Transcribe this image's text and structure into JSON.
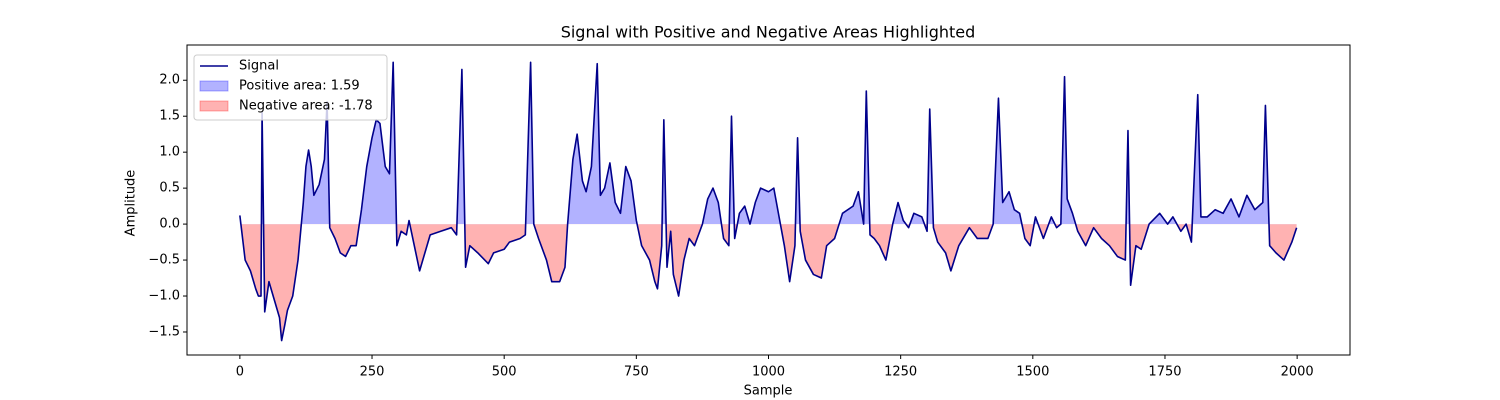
{
  "chart_data": {
    "type": "line",
    "title": "Signal with Positive and Negative Areas Highlighted",
    "x_label": "Sample",
    "y_label": "Amplitude",
    "xlim": [
      -100,
      2100
    ],
    "ylim": [
      -1.82,
      2.49
    ],
    "xticks": [
      0,
      250,
      500,
      750,
      1000,
      1250,
      1500,
      1750,
      2000
    ],
    "yticks": [
      {
        "value": 2,
        "label": "2.0"
      },
      1.5,
      {
        "value": 1,
        "label": "1.0"
      },
      0.5,
      {
        "value": 0,
        "label": "0.0"
      },
      {
        "value": -0.5,
        "label": "−0.5"
      },
      {
        "value": -1,
        "label": "−1.0"
      },
      {
        "value": -1.5,
        "label": "−1.5"
      }
    ],
    "legend_position": "upper left",
    "x": [
      0,
      10,
      20,
      30,
      35,
      40,
      42,
      47,
      55,
      65,
      75,
      79,
      85,
      90,
      100,
      110,
      120,
      125,
      130,
      135,
      140,
      150,
      160,
      165,
      170,
      180,
      190,
      200,
      210,
      220,
      230,
      240,
      250,
      258,
      265,
      275,
      283,
      290,
      297,
      305,
      315,
      320,
      330,
      340,
      350,
      360,
      380,
      400,
      410,
      420,
      427,
      435,
      450,
      470,
      480,
      500,
      510,
      530,
      540,
      550,
      556,
      565,
      580,
      590,
      605,
      615,
      620,
      630,
      638,
      648,
      655,
      665,
      676,
      682,
      690,
      700,
      710,
      720,
      730,
      740,
      750,
      760,
      775,
      785,
      790,
      798,
      802,
      808,
      815,
      820,
      830,
      840,
      850,
      860,
      875,
      885,
      895,
      905,
      915,
      925,
      930,
      936,
      945,
      955,
      965,
      975,
      985,
      1000,
      1010,
      1020,
      1030,
      1040,
      1050,
      1055,
      1060,
      1070,
      1085,
      1100,
      1110,
      1125,
      1140,
      1160,
      1170,
      1180,
      1185,
      1192,
      1200,
      1210,
      1222,
      1235,
      1245,
      1255,
      1265,
      1275,
      1290,
      1300,
      1305,
      1312,
      1320,
      1335,
      1345,
      1360,
      1380,
      1395,
      1415,
      1425,
      1435,
      1443,
      1455,
      1465,
      1475,
      1485,
      1495,
      1505,
      1520,
      1535,
      1545,
      1553,
      1560,
      1565,
      1575,
      1585,
      1600,
      1615,
      1630,
      1645,
      1660,
      1675,
      1680,
      1685,
      1695,
      1705,
      1720,
      1740,
      1755,
      1765,
      1780,
      1790,
      1800,
      1812,
      1818,
      1830,
      1845,
      1860,
      1875,
      1890,
      1905,
      1920,
      1935,
      1940,
      1948,
      1960,
      1975,
      1990,
      1999
    ],
    "series": [
      {
        "name": "Signal",
        "color": "#00008b",
        "values": [
          0.12,
          -0.5,
          -0.65,
          -0.9,
          -1.0,
          -1.0,
          1.55,
          -1.22,
          -0.8,
          -1.05,
          -1.3,
          -1.62,
          -1.4,
          -1.2,
          -1.0,
          -0.5,
          0.3,
          0.8,
          1.03,
          0.8,
          0.4,
          0.55,
          0.9,
          1.7,
          -0.05,
          -0.2,
          -0.4,
          -0.45,
          -0.3,
          -0.3,
          0.2,
          0.8,
          1.2,
          1.45,
          1.4,
          0.8,
          0.7,
          2.25,
          -0.3,
          -0.1,
          -0.15,
          0.05,
          -0.3,
          -0.65,
          -0.4,
          -0.15,
          -0.1,
          -0.05,
          -0.15,
          2.15,
          -0.6,
          -0.3,
          -0.4,
          -0.55,
          -0.4,
          -0.35,
          -0.25,
          -0.2,
          -0.15,
          2.25,
          0.0,
          -0.2,
          -0.5,
          -0.8,
          -0.8,
          -0.6,
          0.0,
          0.9,
          1.25,
          0.6,
          0.45,
          0.8,
          2.23,
          0.4,
          0.5,
          0.85,
          0.3,
          0.15,
          0.8,
          0.6,
          0.05,
          -0.3,
          -0.5,
          -0.8,
          -0.9,
          -0.3,
          1.45,
          -0.6,
          -0.1,
          -0.7,
          -1.0,
          -0.5,
          -0.2,
          -0.3,
          0.0,
          0.35,
          0.5,
          0.3,
          -0.2,
          -0.3,
          1.5,
          -0.2,
          0.15,
          0.25,
          0.0,
          0.3,
          0.5,
          0.45,
          0.5,
          0.1,
          -0.3,
          -0.8,
          -0.3,
          1.2,
          -0.1,
          -0.5,
          -0.7,
          -0.75,
          -0.3,
          -0.2,
          0.15,
          0.25,
          0.45,
          0.0,
          1.85,
          -0.15,
          -0.2,
          -0.3,
          -0.5,
          0.0,
          0.3,
          0.05,
          -0.05,
          0.15,
          0.1,
          -0.1,
          1.6,
          -0.05,
          -0.25,
          -0.4,
          -0.65,
          -0.3,
          -0.05,
          -0.2,
          -0.2,
          0.0,
          1.75,
          0.3,
          0.45,
          0.2,
          0.15,
          -0.2,
          -0.3,
          0.1,
          -0.2,
          0.1,
          -0.05,
          0.0,
          2.05,
          0.35,
          0.15,
          -0.1,
          -0.3,
          -0.05,
          -0.2,
          -0.3,
          -0.45,
          -0.5,
          1.3,
          -0.85,
          -0.3,
          -0.35,
          0.0,
          0.15,
          0.0,
          0.1,
          -0.1,
          0.0,
          -0.25,
          1.8,
          0.1,
          0.1,
          0.2,
          0.15,
          0.35,
          0.1,
          0.4,
          0.2,
          0.3,
          1.65,
          -0.3,
          -0.4,
          -0.5,
          -0.25,
          -0.05
        ]
      }
    ],
    "areas": [
      {
        "name": "Positive area: 1.59",
        "color": "#0000ff",
        "opacity": 0.3,
        "sign": "positive"
      },
      {
        "name": "Negative area: -1.78",
        "color": "#ff0000",
        "opacity": 0.3,
        "sign": "negative"
      }
    ]
  }
}
